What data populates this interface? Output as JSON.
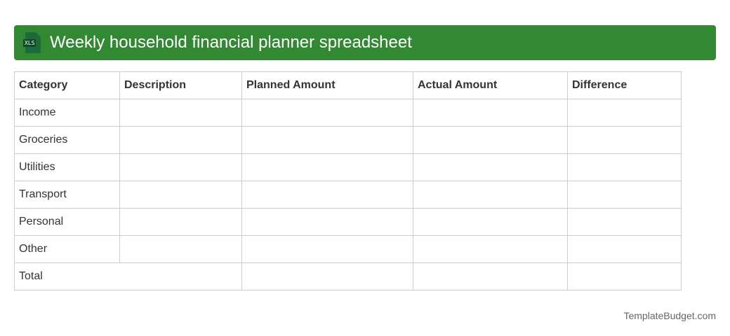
{
  "header": {
    "title": "Weekly household financial planner spreadsheet",
    "icon": "xls-file-icon",
    "icon_label": "XLS",
    "color": "#338833"
  },
  "table": {
    "columns": [
      "Category",
      "Description",
      "Planned Amount",
      "Actual Amount",
      "Difference"
    ],
    "rows": [
      "Income",
      "Groceries",
      "Utilities",
      "Transport",
      "Personal",
      "Other"
    ],
    "total_label": "Total"
  },
  "footer": "TemplateBudget.com"
}
